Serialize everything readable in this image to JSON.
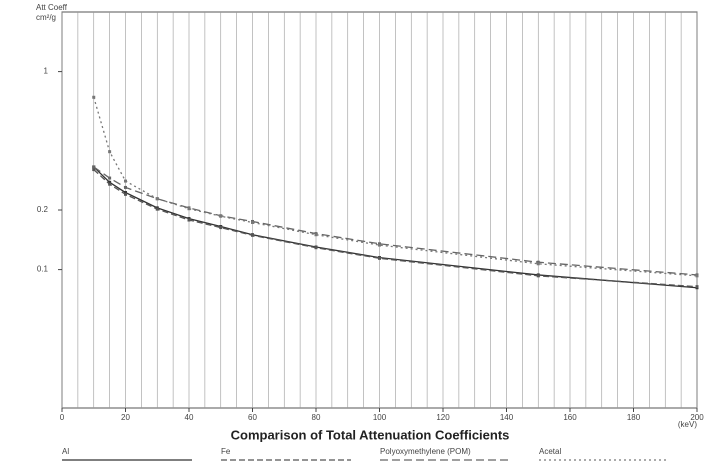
{
  "chart_data": {
    "type": "line",
    "title": "Comparison of Total Attenuation Coefficients",
    "ylabel": [
      "Att Coeff",
      "cm²/g"
    ],
    "xunit": "(keV)",
    "x": [
      10,
      15,
      20,
      30,
      40,
      50,
      60,
      80,
      100,
      150,
      200
    ],
    "xlim": [
      0,
      200
    ],
    "xticks": [
      0,
      20,
      40,
      60,
      80,
      100,
      120,
      140,
      160,
      180,
      200
    ],
    "xminorticks": [
      0,
      5,
      10,
      15,
      20,
      25,
      30,
      35,
      40,
      45,
      50,
      55,
      60,
      65,
      70,
      75,
      80,
      85,
      90,
      95,
      100,
      105,
      110,
      115,
      120,
      125,
      130,
      135,
      140,
      145,
      150,
      155,
      160,
      165,
      170,
      175,
      180,
      185,
      190,
      195,
      200
    ],
    "ylim": [
      0.02,
      2
    ],
    "yticks": [
      0.1,
      0.2,
      1
    ],
    "log_y": true,
    "grid": true,
    "legend": "bottom",
    "series": [
      {
        "name": "Al",
        "color": "#333333",
        "dash": "",
        "values": [
          0.33,
          0.276,
          0.245,
          0.205,
          0.181,
          0.165,
          0.15,
          0.13,
          0.115,
          0.094,
          0.081
        ]
      },
      {
        "name": "Fe",
        "color": "#555555",
        "dash": "6,3",
        "values": [
          0.32,
          0.27,
          0.24,
          0.202,
          0.178,
          0.163,
          0.149,
          0.129,
          0.114,
          0.093,
          0.082
        ]
      },
      {
        "name": "Polyoxymethylene (POM)",
        "color": "#666666",
        "dash": "8,4",
        "values": [
          0.33,
          0.29,
          0.26,
          0.228,
          0.205,
          0.187,
          0.175,
          0.152,
          0.135,
          0.109,
          0.094
        ]
      },
      {
        "name": "Acetal",
        "color": "#777777",
        "dash": "2,3",
        "values": [
          0.742,
          0.394,
          0.28,
          0.228,
          0.203,
          0.186,
          0.173,
          0.15,
          0.133,
          0.107,
          0.093
        ]
      }
    ]
  }
}
